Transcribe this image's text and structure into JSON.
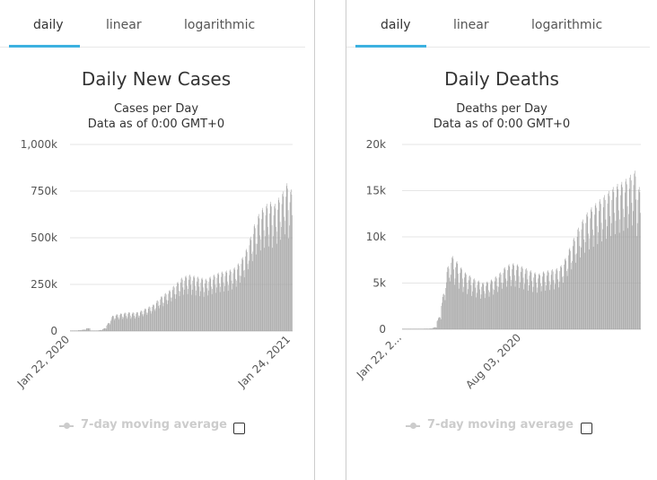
{
  "tabs": [
    "daily",
    "linear",
    "logarithmic"
  ],
  "legend_label": "7-day moving average",
  "colors": {
    "bar": "#a0a0a0",
    "accent": "#3cb1e0",
    "grid": "#e6e6e6"
  },
  "left": {
    "title": "Daily New Cases",
    "subtitle1": "Cases per Day",
    "subtitle2": "Data as of 0:00 GMT+0"
  },
  "right": {
    "title": "Daily Deaths",
    "subtitle1": "Deaths per Day",
    "subtitle2": "Data as of 0:00 GMT+0"
  },
  "chart_data": [
    {
      "type": "bar",
      "title": "Daily New Cases",
      "subtitle": "Cases per Day",
      "ylim": [
        0,
        1000000
      ],
      "yticks": [
        0,
        250000,
        500000,
        750000,
        1000000
      ],
      "ytick_labels": [
        "0",
        "250k",
        "500k",
        "750k",
        "1,000k"
      ],
      "x_start": "2020-01-22",
      "x_end": "2021-01-24",
      "xtick_labels": [
        "Jan 22, 2020",
        "Jan 24, 2021"
      ],
      "grid": true,
      "weekly_values": [
        700,
        1800,
        4500,
        7500,
        15000,
        2500,
        2000,
        5000,
        14000,
        40000,
        75000,
        82000,
        86000,
        90000,
        92000,
        91000,
        93000,
        100000,
        110000,
        120000,
        130000,
        150000,
        170000,
        185000,
        200000,
        220000,
        240000,
        260000,
        270000,
        275000,
        270000,
        265000,
        260000,
        255000,
        265000,
        275000,
        285000,
        290000,
        295000,
        300000,
        310000,
        330000,
        360000,
        400000,
        460000,
        520000,
        570000,
        600000,
        620000,
        630000,
        620000,
        650000,
        680000,
        720000,
        690000
      ]
    },
    {
      "type": "bar",
      "title": "Daily Deaths",
      "subtitle": "Deaths per Day",
      "ylim": [
        0,
        20000
      ],
      "yticks": [
        0,
        5000,
        10000,
        15000,
        20000
      ],
      "ytick_labels": [
        "0",
        "5k",
        "10k",
        "15k",
        "20k"
      ],
      "x_start": "2020-01-22",
      "x_end": "2021-01-24",
      "xtick_labels": [
        "Jan 22, 2...",
        "Aug 03, 2020"
      ],
      "grid": true,
      "weekly_values": [
        20,
        30,
        40,
        40,
        60,
        70,
        80,
        200,
        1200,
        3500,
        6200,
        7200,
        6700,
        6100,
        5600,
        5300,
        5000,
        4800,
        4600,
        4700,
        4900,
        5200,
        5600,
        6100,
        6400,
        6500,
        6400,
        6200,
        6000,
        5800,
        5600,
        5500,
        5700,
        5800,
        5900,
        6000,
        6300,
        7000,
        8000,
        9000,
        10000,
        10800,
        11500,
        12000,
        12400,
        12800,
        13200,
        13600,
        14000,
        14300,
        14500,
        14800,
        15200,
        15600,
        14000
      ]
    }
  ]
}
